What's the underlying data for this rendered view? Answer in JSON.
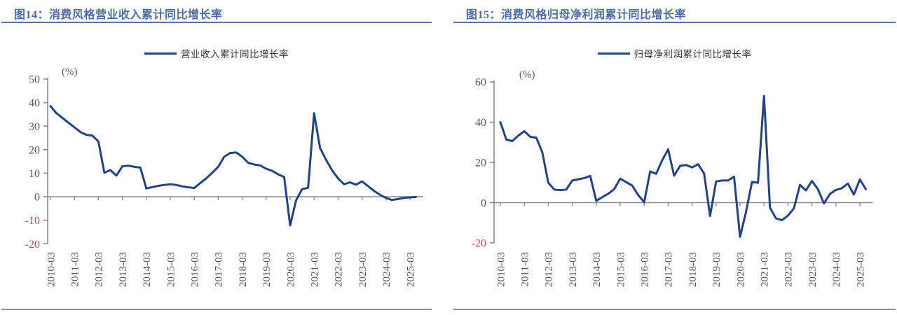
{
  "colors": {
    "line": "#24418e",
    "axis": "#8a8a8a",
    "tick_label": "#595959",
    "negative_tick_label": "#c0504d",
    "title": "#4f6ba3",
    "title_rule": "#5a72a8",
    "footer_rule": "#87929a",
    "legend_text": "#333333"
  },
  "chart_data": [
    {
      "type": "line",
      "title": "图14：消费风格营业收入累计同比增长率",
      "unit_label": "(%)",
      "legend": [
        "营业收入累计同比增长率"
      ],
      "legend_position": "top",
      "grid": false,
      "ylim": [
        -20,
        50
      ],
      "yticks": [
        50,
        40,
        30,
        20,
        10,
        0,
        -10,
        -20
      ],
      "x_tick_labels": [
        "2010-03",
        "2011-03",
        "2012-03",
        "2013-03",
        "2014-03",
        "2015-03",
        "2016-03",
        "2017-03",
        "2018-03",
        "2019-03",
        "2020-03",
        "2021-03",
        "2022-03",
        "2023-03",
        "2024-03",
        "2025-03"
      ],
      "x": [
        "2010-03",
        "2010-06",
        "2010-09",
        "2010-12",
        "2011-03",
        "2011-06",
        "2011-09",
        "2011-12",
        "2012-03",
        "2012-06",
        "2012-09",
        "2012-12",
        "2013-03",
        "2013-06",
        "2013-09",
        "2013-12",
        "2014-03",
        "2014-06",
        "2014-09",
        "2014-12",
        "2015-03",
        "2015-06",
        "2015-09",
        "2015-12",
        "2016-03",
        "2016-06",
        "2016-09",
        "2016-12",
        "2017-03",
        "2017-06",
        "2017-09",
        "2017-12",
        "2018-03",
        "2018-06",
        "2018-09",
        "2018-12",
        "2019-03",
        "2019-06",
        "2019-09",
        "2019-12",
        "2020-03",
        "2020-06",
        "2020-09",
        "2020-12",
        "2021-03",
        "2021-06",
        "2021-09",
        "2021-12",
        "2022-03",
        "2022-06",
        "2022-09",
        "2022-12",
        "2023-03",
        "2023-06",
        "2023-09",
        "2023-12",
        "2024-03",
        "2024-06",
        "2024-09",
        "2024-12",
        "2025-03",
        "2025-06"
      ],
      "series": [
        {
          "name": "营业收入累计同比增长率",
          "values": [
            38.5,
            35.5,
            33.5,
            31.5,
            29.5,
            27.5,
            26.3,
            26.0,
            23.5,
            10.2,
            11.3,
            9.0,
            12.9,
            13.2,
            12.7,
            12.4,
            3.5,
            4.1,
            4.6,
            5.0,
            5.3,
            5.0,
            4.4,
            4.0,
            3.7,
            5.8,
            7.8,
            10.2,
            12.7,
            17.0,
            18.6,
            18.8,
            17.0,
            14.4,
            13.7,
            13.3,
            11.9,
            11.0,
            9.5,
            8.4,
            -12.2,
            -1.5,
            3.2,
            3.8,
            35.5,
            20.7,
            15.7,
            11.2,
            7.8,
            5.3,
            6.1,
            5.1,
            6.5,
            4.5,
            2.5,
            0.8,
            -0.5,
            -1.4,
            -1.0,
            -0.5,
            -0.3,
            -0.1
          ]
        }
      ]
    },
    {
      "type": "line",
      "title": "图15：消费风格归母净利润累计同比增长率",
      "unit_label": "(%)",
      "legend": [
        "归母净利润累计同比增长率"
      ],
      "legend_position": "top",
      "grid": false,
      "ylim": [
        -20,
        60
      ],
      "yticks": [
        60,
        40,
        20,
        0,
        -20
      ],
      "x_tick_labels": [
        "2010-03",
        "2011-03",
        "2012-03",
        "2013-03",
        "2014-03",
        "2015-03",
        "2016-03",
        "2017-03",
        "2018-03",
        "2019-03",
        "2020-03",
        "2021-03",
        "2022-03",
        "2023-03",
        "2024-03",
        "2025-03"
      ],
      "x": [
        "2010-03",
        "2010-06",
        "2010-09",
        "2010-12",
        "2011-03",
        "2011-06",
        "2011-09",
        "2011-12",
        "2012-03",
        "2012-06",
        "2012-09",
        "2012-12",
        "2013-03",
        "2013-06",
        "2013-09",
        "2013-12",
        "2014-03",
        "2014-06",
        "2014-09",
        "2014-12",
        "2015-03",
        "2015-06",
        "2015-09",
        "2015-12",
        "2016-03",
        "2016-06",
        "2016-09",
        "2016-12",
        "2017-03",
        "2017-06",
        "2017-09",
        "2017-12",
        "2018-03",
        "2018-06",
        "2018-09",
        "2018-12",
        "2019-03",
        "2019-06",
        "2019-09",
        "2019-12",
        "2020-03",
        "2020-06",
        "2020-09",
        "2020-12",
        "2021-03",
        "2021-06",
        "2021-09",
        "2021-12",
        "2022-03",
        "2022-06",
        "2022-09",
        "2022-12",
        "2023-03",
        "2023-06",
        "2023-09",
        "2023-12",
        "2024-03",
        "2024-06",
        "2024-09",
        "2024-12",
        "2025-03",
        "2025-06"
      ],
      "series": [
        {
          "name": "归母净利润累计同比增长率",
          "values": [
            40.0,
            31.3,
            30.6,
            33.3,
            35.5,
            32.7,
            32.3,
            25.0,
            9.9,
            6.5,
            6.2,
            6.5,
            11.0,
            11.6,
            12.2,
            13.3,
            0.9,
            2.7,
            4.4,
            6.7,
            11.9,
            10.2,
            8.5,
            3.8,
            0.2,
            15.5,
            14.3,
            21.0,
            26.5,
            13.4,
            18.3,
            18.7,
            17.5,
            19.1,
            14.5,
            -6.6,
            10.5,
            11.0,
            11.0,
            12.9,
            -17.0,
            -4.6,
            10.3,
            9.9,
            53.0,
            -2.5,
            -7.8,
            -8.7,
            -6.4,
            -2.8,
            8.8,
            6.1,
            10.8,
            6.7,
            -0.4,
            4.3,
            6.3,
            7.2,
            9.5,
            4.0,
            11.5,
            6.7
          ]
        }
      ]
    }
  ]
}
